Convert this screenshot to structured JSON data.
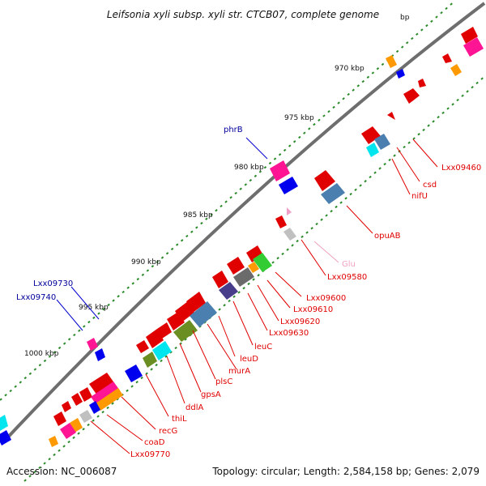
{
  "title": "Leifsonia xyli subsp. xyli str. CTCB07, complete genome",
  "footer": {
    "accession": "Accession: NC_006087",
    "summary": "Topology: circular; Length: 2,584,158 bp; Genes: 2,079"
  },
  "ticks": [
    "970 kbp",
    "975 kbp",
    "980 kbp",
    "985 kbp",
    "990 kbp",
    "995 kbp",
    "1000 kbp"
  ],
  "colors": {
    "backbone": "#7a7a7a",
    "dots": "#2a8a2a",
    "label_red": "#e00000",
    "label_blue": "#00009a",
    "label_pink": "#f0a0c0"
  },
  "labels": [
    {
      "text": "Lxx09460",
      "color": "red"
    },
    {
      "text": "csd",
      "color": "red"
    },
    {
      "text": "nifU",
      "color": "red"
    },
    {
      "text": "phrB",
      "color": "blue"
    },
    {
      "text": "opuAB",
      "color": "red"
    },
    {
      "text": "Glu",
      "color": "pink"
    },
    {
      "text": "Lxx09580",
      "color": "red"
    },
    {
      "text": "Lxx09600",
      "color": "red"
    },
    {
      "text": "Lxx09610",
      "color": "red"
    },
    {
      "text": "Lxx09620",
      "color": "red"
    },
    {
      "text": "Lxx09630",
      "color": "red"
    },
    {
      "text": "leuC",
      "color": "red"
    },
    {
      "text": "leuD",
      "color": "red"
    },
    {
      "text": "murA",
      "color": "red"
    },
    {
      "text": "plsC",
      "color": "red"
    },
    {
      "text": "gpsA",
      "color": "red"
    },
    {
      "text": "ddlA",
      "color": "red"
    },
    {
      "text": "thiL",
      "color": "red"
    },
    {
      "text": "recG",
      "color": "red"
    },
    {
      "text": "coaD",
      "color": "red"
    },
    {
      "text": "Lxx09770",
      "color": "red"
    },
    {
      "text": "Lxx09730",
      "color": "blue"
    },
    {
      "text": "Lxx09740",
      "color": "blue"
    }
  ]
}
